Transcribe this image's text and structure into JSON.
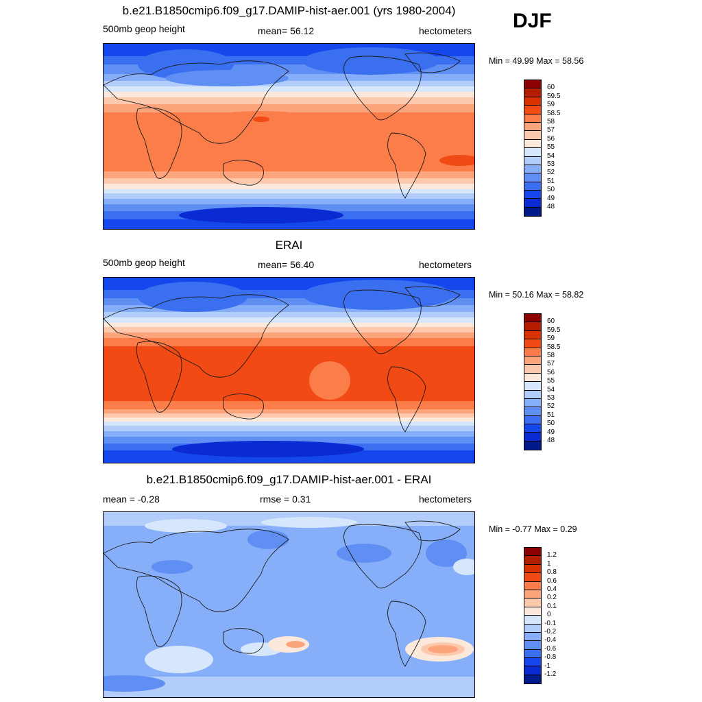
{
  "season": "DJF",
  "panels": [
    {
      "title": "b.e21.B1850cmip6.f09_g17.DAMIP-hist-aer.001 (yrs 1980-2004)",
      "left_label": "500mb geop height",
      "center_label": "mean=  56.12",
      "right_label": "hectometers",
      "minmax": "Min =  49.99 Max =  58.56",
      "legend_labels": [
        "60",
        "59.5",
        "59",
        "58.5",
        "58",
        "57",
        "56",
        "55",
        "54",
        "53",
        "52",
        "51",
        "50",
        "49",
        "48"
      ],
      "legend_colors": [
        "#8b0000",
        "#b51d00",
        "#d93200",
        "#f24a14",
        "#fa7d4a",
        "#fca57c",
        "#fdc9ad",
        "#fde9dc",
        "#d6e7fb",
        "#b2cdf9",
        "#87aef8",
        "#5f8ff3",
        "#3a6ff0",
        "#1448ec",
        "#0a2ad2",
        "#001a8b"
      ],
      "field": "z500_model"
    },
    {
      "title": "ERAI",
      "left_label": "500mb geop height",
      "center_label": "mean=  56.40",
      "right_label": "hectometers",
      "minmax": "Min =  50.16 Max =  58.82",
      "legend_labels": [
        "60",
        "59.5",
        "59",
        "58.5",
        "58",
        "57",
        "56",
        "55",
        "54",
        "53",
        "52",
        "51",
        "50",
        "49",
        "48"
      ],
      "legend_colors": [
        "#8b0000",
        "#b51d00",
        "#d93200",
        "#f24a14",
        "#fa7d4a",
        "#fca57c",
        "#fdc9ad",
        "#fde9dc",
        "#d6e7fb",
        "#b2cdf9",
        "#87aef8",
        "#5f8ff3",
        "#3a6ff0",
        "#1448ec",
        "#0a2ad2",
        "#001a8b"
      ],
      "field": "z500_obs"
    },
    {
      "title": "b.e21.B1850cmip6.f09_g17.DAMIP-hist-aer.001 - ERAI",
      "left_label": "mean =  -0.28",
      "center_label": "rmse =   0.31",
      "right_label": "hectometers",
      "minmax": "Min =  -0.77 Max =   0.29",
      "legend_labels": [
        "1.2",
        "1",
        "0.8",
        "0.6",
        "0.4",
        "0.2",
        "0.1",
        "0",
        "-0.1",
        "-0.2",
        "-0.4",
        "-0.6",
        "-0.8",
        "-1",
        "-1.2"
      ],
      "legend_colors": [
        "#8b0000",
        "#b51d00",
        "#d93200",
        "#f24a14",
        "#fa7d4a",
        "#fca57c",
        "#fdc9ad",
        "#fde9dc",
        "#d6e7fb",
        "#b2cdf9",
        "#87aef8",
        "#5f8ff3",
        "#3a6ff0",
        "#1448ec",
        "#0a2ad2",
        "#001a8b"
      ],
      "field": "z500_diff"
    }
  ]
}
